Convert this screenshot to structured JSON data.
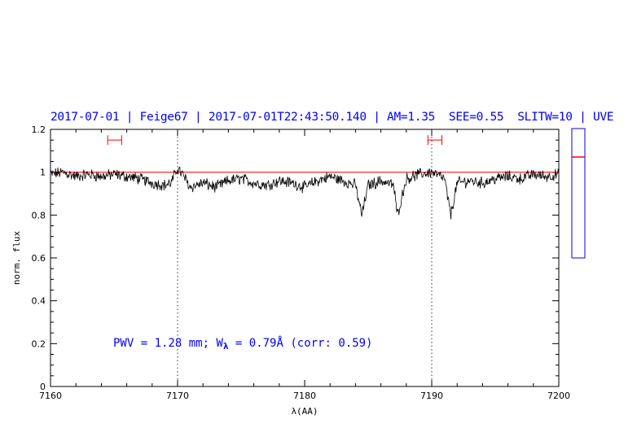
{
  "header": {
    "text": "2017-07-01 | Feige67 | 2017-07-01T22:43:50.140 | AM=1.35  SEE=0.55  SLITW=10 | UVE"
  },
  "annotation": {
    "prefix": "PWV = 1.28 mm; W",
    "sub": "λ",
    "suffix": " = 0.79Å (corr: 0.59)"
  },
  "colors": {
    "header": "#0000ff",
    "spectrum": "#000000",
    "continuum": "#ff0000",
    "sidebar_frame": "#0000ff",
    "marker": "#ff0000"
  },
  "chart_data": {
    "type": "line",
    "xlabel": "λ(AA)",
    "ylabel": "norm. flux",
    "xlim": [
      7160,
      7200
    ],
    "ylim": [
      0,
      1.2
    ],
    "x_ticks": [
      7160,
      7170,
      7180,
      7190,
      7200
    ],
    "x_tick_labels": [
      "7160",
      "7170",
      "7180",
      "7190",
      "7200"
    ],
    "y_ticks": [
      0,
      0.2,
      0.4,
      0.6,
      0.8,
      1,
      1.2
    ],
    "y_tick_labels": [
      "0",
      "0.2",
      "0.4",
      "0.6",
      "0.8",
      "1",
      "1.2"
    ],
    "continuum_level": 1.0,
    "vertical_markers": [
      7170,
      7190
    ],
    "ranges": [
      [
        7164.5,
        7165.6
      ],
      [
        7189.7,
        7190.8
      ]
    ],
    "range_y": 1.15,
    "sidebar_level": 0.47,
    "grid": false,
    "spectrum_anchor_points": {
      "x": [
        7160,
        7161,
        7162,
        7163,
        7164,
        7165,
        7166,
        7167,
        7168,
        7169,
        7169.5,
        7170,
        7170.5,
        7171,
        7172,
        7173,
        7174,
        7175,
        7176,
        7177,
        7178,
        7179,
        7180,
        7181,
        7182,
        7183,
        7184,
        7184.5,
        7185,
        7186,
        7187,
        7187.3,
        7188,
        7189,
        7190,
        7191,
        7191.5,
        7192,
        7193,
        7194,
        7195,
        7196,
        7197,
        7198,
        7199,
        7200
      ],
      "y": [
        0.99,
        1.0,
        0.98,
        0.99,
        0.98,
        0.99,
        0.98,
        0.97,
        0.95,
        0.94,
        0.95,
        1.02,
        0.98,
        0.93,
        0.95,
        0.93,
        0.96,
        0.97,
        0.95,
        0.94,
        0.96,
        0.95,
        0.93,
        0.96,
        0.98,
        0.96,
        0.94,
        0.8,
        0.94,
        0.96,
        0.94,
        0.8,
        0.97,
        0.99,
        1.0,
        0.97,
        0.8,
        0.95,
        0.96,
        0.95,
        0.97,
        0.98,
        0.97,
        0.99,
        0.98,
        0.99
      ]
    }
  }
}
